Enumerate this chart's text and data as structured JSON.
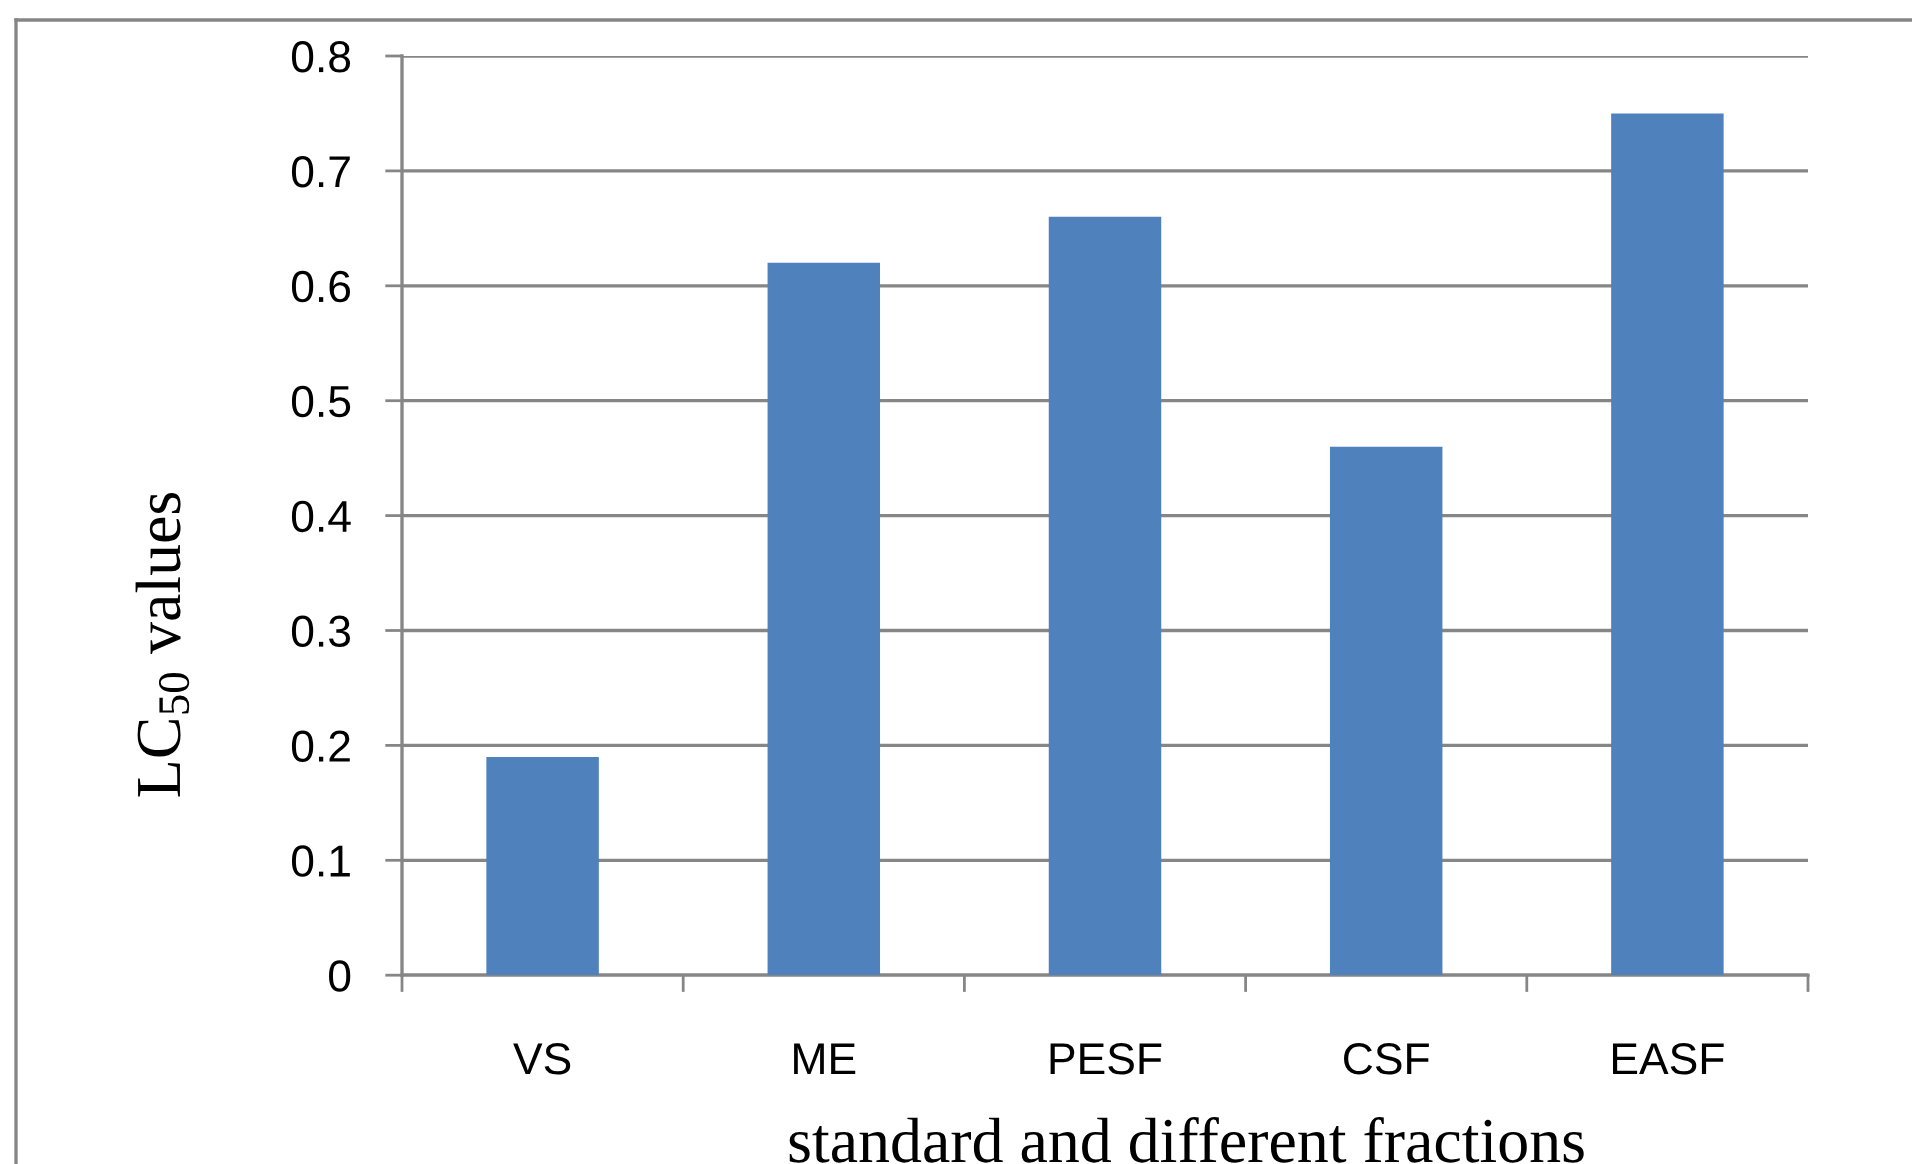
{
  "chart_data": {
    "type": "bar",
    "categories": [
      "VS",
      "ME",
      "PESF",
      "CSF",
      "EASF"
    ],
    "values": [
      0.19,
      0.62,
      0.66,
      0.46,
      0.75
    ],
    "color": "#4f81bd",
    "xlabel": "standard and different fractions",
    "ylabel": "LC$_{50}$ values",
    "ylim": [
      0,
      0.8
    ],
    "yticks": [
      0,
      0.1,
      0.2,
      0.3,
      0.4,
      0.5,
      0.6,
      0.7,
      0.8
    ],
    "grid": "y"
  }
}
